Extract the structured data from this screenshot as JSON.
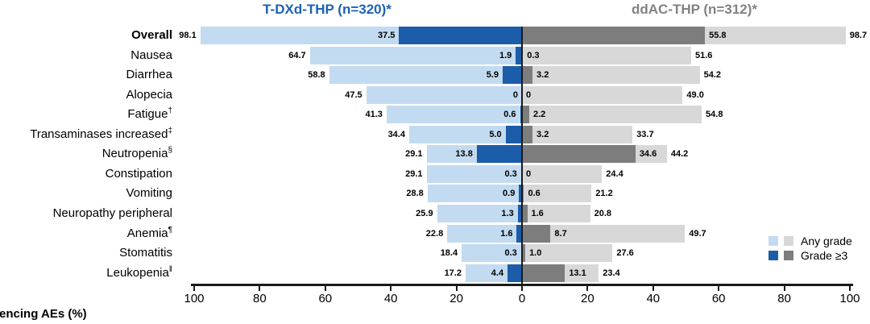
{
  "colors": {
    "tdxd_any": "#C3DBF1",
    "tdxd_grade3": "#1C5DA9",
    "ddac_any": "#D8D8D8",
    "ddac_grade3": "#7D7D7D",
    "title_left": "#1D62B4",
    "title_right": "#828282",
    "axis": "#1A1A1A",
    "value_label": "#000000"
  },
  "chart_data": {
    "type": "bar",
    "variant": "diverging butterfly (tornado), horizontal, stacked overlay",
    "title_left": "T-DXd-THP (n=320)*",
    "title_right": "ddAC-THP (n=312)*",
    "xlabel": "Patients experiencing AEs (%)",
    "x_tick_values": [
      100,
      80,
      60,
      40,
      20,
      0,
      20,
      40,
      60,
      80,
      100
    ],
    "x_max_each_side": 100,
    "grid": false,
    "legend": [
      "Any grade",
      "Grade ≥3"
    ],
    "legend_position": "right",
    "categories": [
      "Overall",
      "Nausea",
      "Diarrhea",
      "Alopecia",
      "Fatigue†",
      "Transaminases increased‡",
      "Neutropenia§",
      "Constipation",
      "Vomiting",
      "Neuropathy peripheral",
      "Anemia¶",
      "Stomatitis",
      "Leukopenia‖"
    ],
    "rows": [
      {
        "category": "Overall",
        "sup": "",
        "bold": true,
        "tdxd_any": "98.1",
        "tdxd_grade3": "37.5",
        "ddac_grade3": "55.8",
        "ddac_any": "98.7"
      },
      {
        "category": "Nausea",
        "sup": "",
        "bold": false,
        "tdxd_any": "64.7",
        "tdxd_grade3": "1.9",
        "ddac_grade3": "0.3",
        "ddac_any": "51.6"
      },
      {
        "category": "Diarrhea",
        "sup": "",
        "bold": false,
        "tdxd_any": "58.8",
        "tdxd_grade3": "5.9",
        "ddac_grade3": "3.2",
        "ddac_any": "54.2"
      },
      {
        "category": "Alopecia",
        "sup": "",
        "bold": false,
        "tdxd_any": "47.5",
        "tdxd_grade3": "0",
        "ddac_grade3": "0",
        "ddac_any": "49.0"
      },
      {
        "category": "Fatigue",
        "sup": "†",
        "bold": false,
        "tdxd_any": "41.3",
        "tdxd_grade3": "0.6",
        "ddac_grade3": "2.2",
        "ddac_any": "54.8"
      },
      {
        "category": "Transaminases increased",
        "sup": "‡",
        "bold": false,
        "tdxd_any": "34.4",
        "tdxd_grade3": "5.0",
        "ddac_grade3": "3.2",
        "ddac_any": "33.7"
      },
      {
        "category": "Neutropenia",
        "sup": "§",
        "bold": false,
        "tdxd_any": "29.1",
        "tdxd_grade3": "13.8",
        "ddac_grade3": "34.6",
        "ddac_any": "44.2"
      },
      {
        "category": "Constipation",
        "sup": "",
        "bold": false,
        "tdxd_any": "29.1",
        "tdxd_grade3": "0.3",
        "ddac_grade3": "0",
        "ddac_any": "24.4"
      },
      {
        "category": "Vomiting",
        "sup": "",
        "bold": false,
        "tdxd_any": "28.8",
        "tdxd_grade3": "0.9",
        "ddac_grade3": "0.6",
        "ddac_any": "21.2"
      },
      {
        "category": "Neuropathy peripheral",
        "sup": "",
        "bold": false,
        "tdxd_any": "25.9",
        "tdxd_grade3": "1.3",
        "ddac_grade3": "1.6",
        "ddac_any": "20.8"
      },
      {
        "category": "Anemia",
        "sup": "¶",
        "bold": false,
        "tdxd_any": "22.8",
        "tdxd_grade3": "1.6",
        "ddac_grade3": "8.7",
        "ddac_any": "49.7"
      },
      {
        "category": "Stomatitis",
        "sup": "",
        "bold": false,
        "tdxd_any": "18.4",
        "tdxd_grade3": "0.3",
        "ddac_grade3": "1.0",
        "ddac_any": "27.6"
      },
      {
        "category": "Leukopenia",
        "sup": "‖",
        "bold": false,
        "tdxd_any": "17.2",
        "tdxd_grade3": "4.4",
        "ddac_grade3": "13.1",
        "ddac_any": "23.4"
      }
    ],
    "series": [
      {
        "name": "T-DXd-THP (n=320) – Any grade",
        "side": "left",
        "values": [
          98.1,
          64.7,
          58.8,
          47.5,
          41.3,
          34.4,
          29.1,
          29.1,
          28.8,
          25.9,
          22.8,
          18.4,
          17.2
        ]
      },
      {
        "name": "T-DXd-THP (n=320) – Grade ≥3",
        "side": "left",
        "values": [
          37.5,
          1.9,
          5.9,
          0,
          0.6,
          5.0,
          13.8,
          0.3,
          0.9,
          1.3,
          1.6,
          0.3,
          4.4
        ]
      },
      {
        "name": "ddAC-THP (n=312) – Grade ≥3",
        "side": "right",
        "values": [
          55.8,
          0.3,
          3.2,
          0,
          2.2,
          3.2,
          34.6,
          0,
          0.6,
          1.6,
          8.7,
          1.0,
          13.1
        ]
      },
      {
        "name": "ddAC-THP (n=312) – Any grade",
        "side": "right",
        "values": [
          98.7,
          51.6,
          54.2,
          49.0,
          54.8,
          33.7,
          44.2,
          24.4,
          21.2,
          20.8,
          49.7,
          27.6,
          23.4
        ]
      }
    ]
  }
}
